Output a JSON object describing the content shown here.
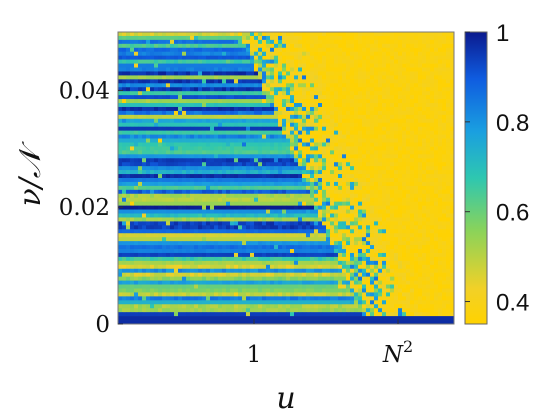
{
  "chart_data": {
    "type": "heatmap",
    "title": "",
    "xlabel": "u",
    "ylabel": "ν/𝒩",
    "x_ticks": [
      {
        "label": "1",
        "superscript": ""
      },
      {
        "label": "N",
        "superscript": "2"
      }
    ],
    "y_ticks": [
      "0",
      "0.02",
      "0.04"
    ],
    "y_tick_values": [
      0,
      0.02,
      0.04
    ],
    "ylim": [
      0,
      0.05
    ],
    "colorbar": {
      "ticks": [
        "1",
        "0.8",
        "0.6",
        "0.4"
      ],
      "tick_values": [
        1,
        0.8,
        0.6,
        0.4
      ],
      "range": [
        0.35,
        1
      ],
      "colormap": "parula-reversed",
      "colors": [
        "#0b1a8e",
        "#0f5ce0",
        "#1a9fe0",
        "#2ec7b0",
        "#8ad35a",
        "#f2d127",
        "#ffd200"
      ]
    },
    "grid": false,
    "pattern": "low u: banded values near 1 (blue/green) across ν/𝒩; high u: values near 0.35 (yellow); transition boundary decreasing from ~0.05 at u≈1 to 0 near u≈N²"
  }
}
